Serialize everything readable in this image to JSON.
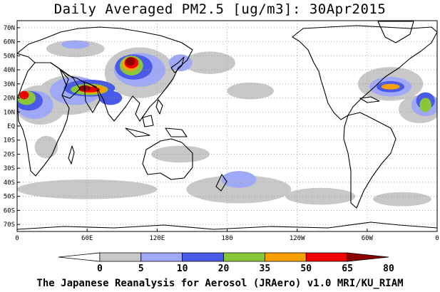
{
  "title": "Daily Averaged PM2.5 [ug/m3]: 30Apr2015",
  "footer": "The Japanese Reanalysis for Aerosol (JRAero) v1.0 MRI/KU_RIAM",
  "axes": {
    "lat_labels": [
      "70N",
      "60N",
      "50N",
      "40N",
      "30N",
      "20N",
      "10N",
      "EQ",
      "10S",
      "20S",
      "30S",
      "40S",
      "50S",
      "60S",
      "70S"
    ],
    "lat_values": [
      70,
      60,
      50,
      40,
      30,
      20,
      10,
      0,
      -10,
      -20,
      -30,
      -40,
      -50,
      -60,
      -70
    ],
    "lon_labels": [
      "0",
      "60E",
      "120E",
      "180",
      "120W",
      "60W",
      "0"
    ],
    "lon_values": [
      0,
      60,
      120,
      180,
      240,
      300,
      360
    ]
  },
  "colorbar": {
    "levels": [
      "0",
      "5",
      "10",
      "20",
      "35",
      "50",
      "65",
      "80"
    ],
    "colors": [
      "#ffffff",
      "#c8c8c8",
      "#a0a8f8",
      "#4a5ae8",
      "#88c838",
      "#f8a000",
      "#f00000",
      "#8c0000"
    ]
  },
  "pm_regions": [
    {
      "level": 1,
      "lat": 38,
      "lon": 105,
      "rx": 30,
      "ry": 18
    },
    {
      "level": 1,
      "lat": 22,
      "lon": 45,
      "rx": 28,
      "ry": 14
    },
    {
      "level": 1,
      "lat": 15,
      "lon": 20,
      "rx": 22,
      "ry": 14
    },
    {
      "level": 1,
      "lat": 55,
      "lon": 50,
      "rx": 25,
      "ry": 6
    },
    {
      "level": 1,
      "lat": 45,
      "lon": 165,
      "rx": 22,
      "ry": 8
    },
    {
      "level": 1,
      "lat": 30,
      "lon": 320,
      "rx": 28,
      "ry": 12
    },
    {
      "level": 1,
      "lat": 12,
      "lon": 345,
      "rx": 18,
      "ry": 10
    },
    {
      "level": 1,
      "lat": -45,
      "lon": 60,
      "rx": 60,
      "ry": 7
    },
    {
      "level": 1,
      "lat": -45,
      "lon": 190,
      "rx": 45,
      "ry": 10
    },
    {
      "level": 1,
      "lat": -50,
      "lon": 260,
      "rx": 30,
      "ry": 6
    },
    {
      "level": 1,
      "lat": -52,
      "lon": 330,
      "rx": 25,
      "ry": 5
    },
    {
      "level": 1,
      "lat": -20,
      "lon": 140,
      "rx": 25,
      "ry": 6
    },
    {
      "level": 1,
      "lat": 25,
      "lon": 200,
      "rx": 20,
      "ry": 6
    },
    {
      "level": 1,
      "lat": -15,
      "lon": 25,
      "rx": 10,
      "ry": 8
    },
    {
      "level": 2,
      "lat": 40,
      "lon": 105,
      "rx": 22,
      "ry": 12
    },
    {
      "level": 2,
      "lat": 25,
      "lon": 50,
      "rx": 22,
      "ry": 10
    },
    {
      "level": 2,
      "lat": 15,
      "lon": 15,
      "rx": 16,
      "ry": 10
    },
    {
      "level": 2,
      "lat": 28,
      "lon": 320,
      "rx": 18,
      "ry": 7
    },
    {
      "level": 2,
      "lat": 15,
      "lon": 350,
      "rx": 12,
      "ry": 8
    },
    {
      "level": 2,
      "lat": 45,
      "lon": 140,
      "rx": 10,
      "ry": 6
    },
    {
      "level": 2,
      "lat": -38,
      "lon": 190,
      "rx": 15,
      "ry": 6
    },
    {
      "level": 2,
      "lat": 58,
      "lon": 50,
      "rx": 12,
      "ry": 3
    },
    {
      "level": 3,
      "lat": 42,
      "lon": 100,
      "rx": 16,
      "ry": 9
    },
    {
      "level": 3,
      "lat": 27,
      "lon": 62,
      "rx": 22,
      "ry": 6
    },
    {
      "level": 3,
      "lat": 18,
      "lon": 10,
      "rx": 12,
      "ry": 7
    },
    {
      "level": 3,
      "lat": 28,
      "lon": 320,
      "rx": 12,
      "ry": 4
    },
    {
      "level": 3,
      "lat": 18,
      "lon": 350,
      "rx": 8,
      "ry": 6
    },
    {
      "level": 3,
      "lat": 20,
      "lon": 80,
      "rx": 10,
      "ry": 5
    },
    {
      "level": 4,
      "lat": 43,
      "lon": 98,
      "rx": 10,
      "ry": 7
    },
    {
      "level": 4,
      "lat": 26,
      "lon": 62,
      "rx": 16,
      "ry": 4
    },
    {
      "level": 4,
      "lat": 20,
      "lon": 8,
      "rx": 8,
      "ry": 5
    },
    {
      "level": 4,
      "lat": 15,
      "lon": 350,
      "rx": 5,
      "ry": 5
    },
    {
      "level": 5,
      "lat": 44,
      "lon": 97,
      "rx": 7,
      "ry": 5
    },
    {
      "level": 5,
      "lat": 26,
      "lon": 65,
      "rx": 12,
      "ry": 3
    },
    {
      "level": 5,
      "lat": 28,
      "lon": 320,
      "rx": 8,
      "ry": 2
    },
    {
      "level": 6,
      "lat": 45,
      "lon": 98,
      "rx": 6,
      "ry": 4
    },
    {
      "level": 6,
      "lat": 26,
      "lon": 62,
      "rx": 9,
      "ry": 2
    },
    {
      "level": 6,
      "lat": 22,
      "lon": 6,
      "rx": 4,
      "ry": 3
    },
    {
      "level": 7,
      "lat": 46,
      "lon": 97,
      "rx": 4,
      "ry": 3
    },
    {
      "level": 7,
      "lat": 27,
      "lon": 58,
      "rx": 5,
      "ry": 2
    }
  ]
}
